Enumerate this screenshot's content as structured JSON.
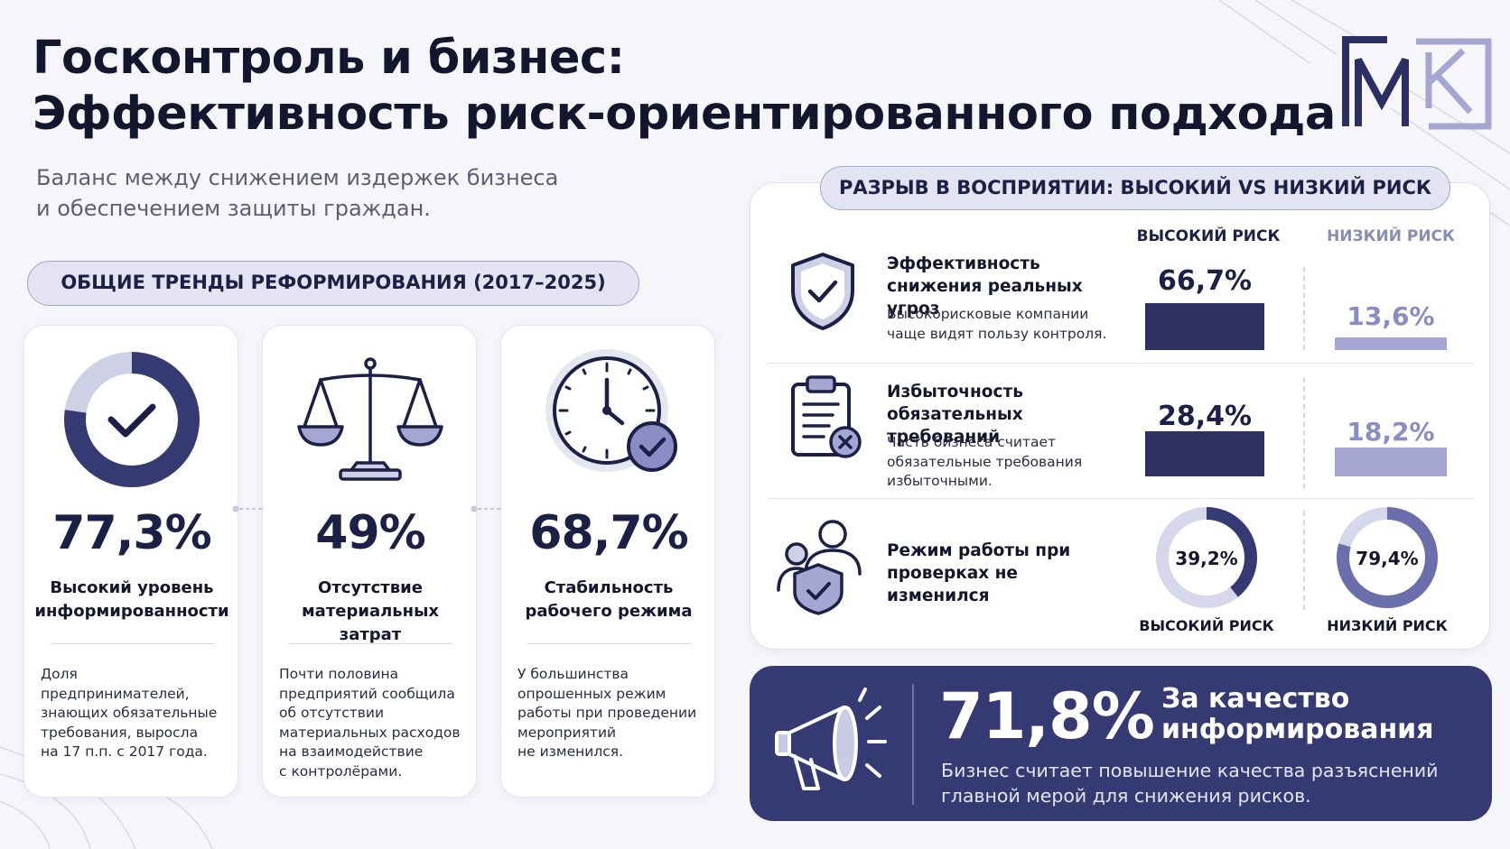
{
  "header": {
    "title_line1": "Госконтроль и бизнес:",
    "title_line2": "Эффективность риск-ориентированного подхода",
    "subtitle_line1": "Баланс между снижением издержек бизнеса",
    "subtitle_line2": "и обеспечением защиты граждан.",
    "logo_icon": "gm-k-logo-icon"
  },
  "trends": {
    "heading": "ОБЩИЕ ТРЕНДЫ РЕФОРМИРОВАНИЯ (2017–2025)",
    "cards": [
      {
        "icon": "donut-check-icon",
        "donut_fraction": 0.773,
        "value": "77,3%",
        "label_line1": "Высокий уровень",
        "label_line2": "информированности",
        "desc": [
          "Доля предпринимателей,",
          "знающих обязательные",
          "требования, выросла",
          "на 17 п.п. с 2017 года."
        ]
      },
      {
        "icon": "scales-icon",
        "value": "49%",
        "label_line1": "Отсутствие",
        "label_line2": "материальных затрат",
        "desc": [
          "Почти половина",
          "предприятий сообщила",
          "об отсутствии",
          "материальных расходов",
          "на взаимодействие",
          "с контролёрами."
        ]
      },
      {
        "icon": "clock-check-icon",
        "value": "68,7%",
        "label_line1": "Стабильность",
        "label_line2": "рабочего режима",
        "desc": [
          "У большинства",
          "опрошенных режим",
          "работы при проведении",
          "мероприятий",
          "не изменился."
        ]
      }
    ]
  },
  "comparison": {
    "heading": "РАЗРЫВ В ВОСПРИЯТИИ: ВЫСОКИЙ VS НИЗКИЙ РИСК",
    "col_high": "ВЫСОКИЙ РИСК",
    "col_low": "НИЗКИЙ РИСК",
    "rows": [
      {
        "icon": "shield-check-icon",
        "title_line1": "Эффективность",
        "title_line2": "снижения реальных угроз",
        "desc": [
          "Высокорисковые компании",
          "чаще видят пользу контроля."
        ],
        "high_label": "66,7%",
        "high_value": 66.7,
        "low_label": "13,6%",
        "low_value": 13.6
      },
      {
        "icon": "clipboard-x-icon",
        "title_line1": "Избыточность",
        "title_line2": "обязательных требований",
        "desc": [
          "Часть бизнеса считает",
          "обязательные требования",
          "избыточными."
        ],
        "high_label": "28,4%",
        "high_value": 28.4,
        "low_label": "18,2%",
        "low_value": 18.2
      },
      {
        "icon": "people-shield-icon",
        "title_line1": "Режим работы при",
        "title_line2": "проверках не изменился",
        "high_label": "39,2%",
        "high_value": 39.2,
        "low_label": "79,4%",
        "low_value": 79.4,
        "high_caption": "ВЫСОКИЙ РИСК",
        "low_caption": "НИЗКИЙ РИСК"
      }
    ]
  },
  "callout": {
    "icon": "megaphone-icon",
    "value": "71,8%",
    "title_line1": "За качество",
    "title_line2": "информирования",
    "desc_line1": "Бизнес считает повышение качества разъяснений",
    "desc_line2": "главной мерой для снижения рисков."
  },
  "colors": {
    "navy": "#1d2046",
    "bar_high": "#2f3160",
    "bar_low": "#a5a7d2",
    "callout_bg": "#363a72",
    "pill_bg": "#e3e3f1"
  }
}
